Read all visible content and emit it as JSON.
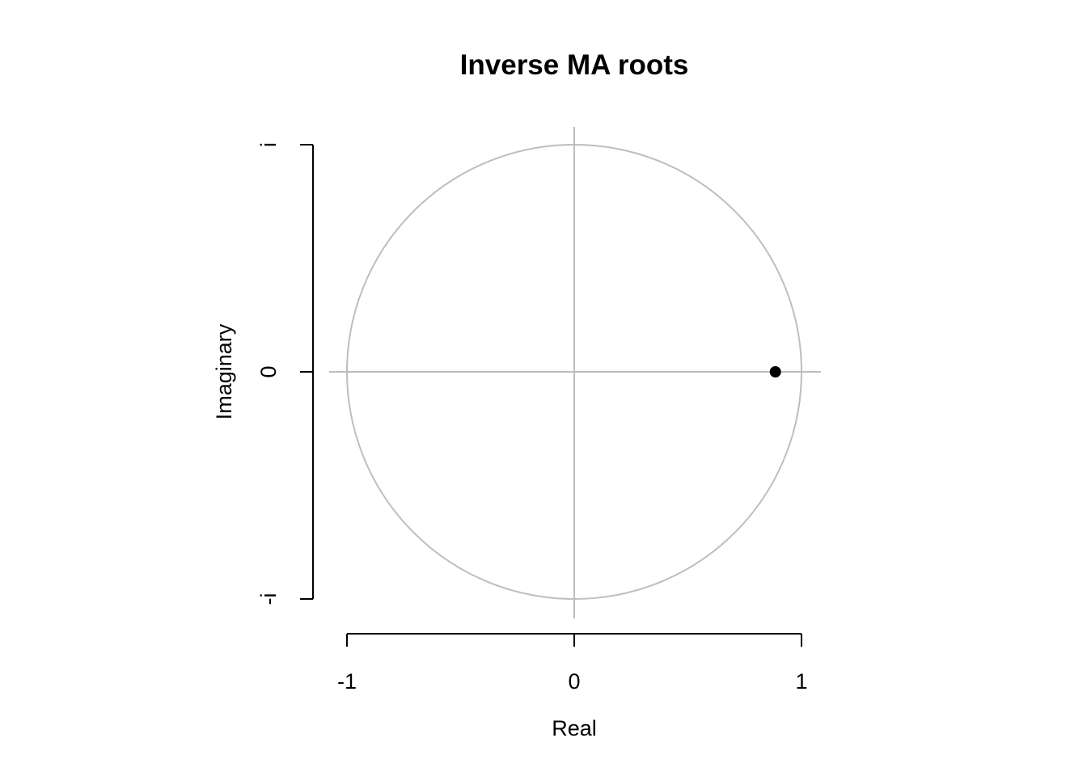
{
  "chart_data": {
    "type": "scatter",
    "title": "Inverse MA roots",
    "xlabel": "Real",
    "ylabel": "Imaginary",
    "xlim": [
      -1,
      1
    ],
    "ylim": [
      -1,
      1
    ],
    "x_ticks": [
      {
        "value": -1,
        "label": "-1"
      },
      {
        "value": 0,
        "label": "0"
      },
      {
        "value": 1,
        "label": "1"
      }
    ],
    "y_ticks": [
      {
        "value": -1,
        "label": "-i"
      },
      {
        "value": 0,
        "label": "0"
      },
      {
        "value": 1,
        "label": "i"
      }
    ],
    "unit_circle": true,
    "reference_lines": {
      "x": 0,
      "y": 0
    },
    "points": [
      {
        "x": 0.885,
        "y": 0
      }
    ],
    "colors": {
      "reference": "#bebebe",
      "point": "#000000",
      "axis": "#000000"
    },
    "grid": false,
    "legend": "none"
  }
}
